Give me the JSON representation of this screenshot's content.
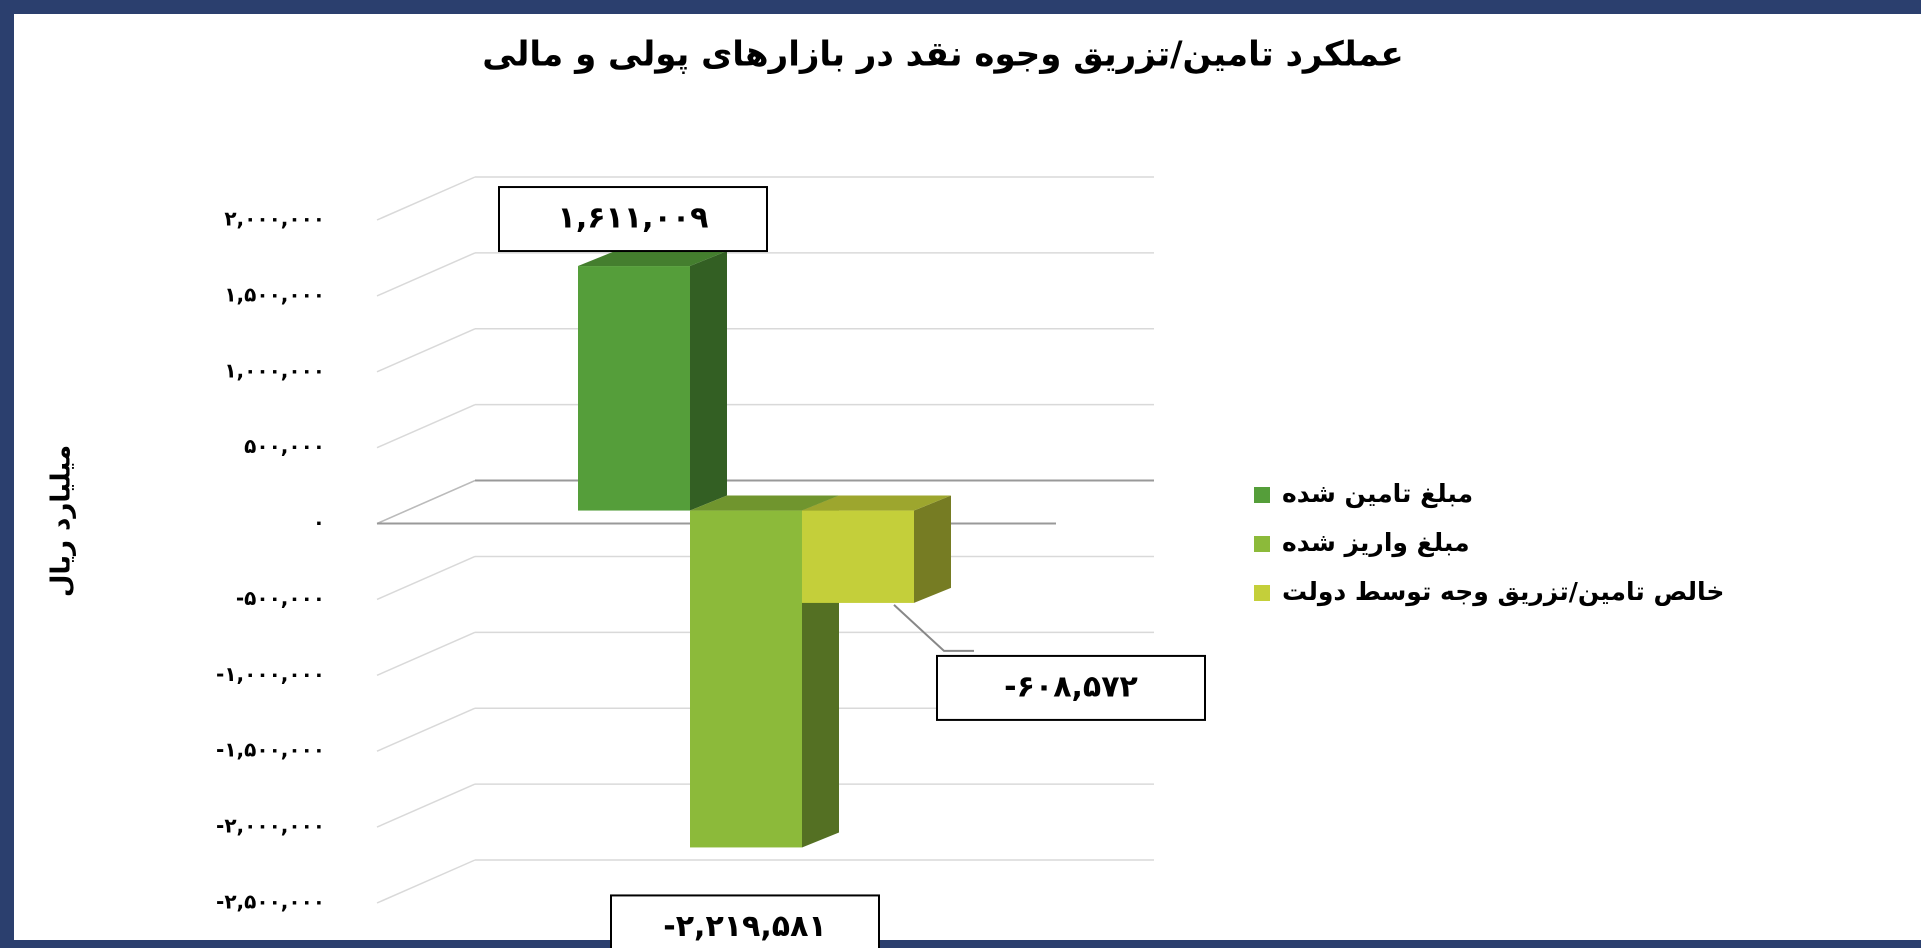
{
  "chart_data": {
    "type": "bar3d",
    "title": "عملکرد تامین/تزریق وجوه نقد در بازارهای پولی و مالی",
    "y_label": "میلیارد ریال",
    "categories": [
      null
    ],
    "series": [
      {
        "name": "مبلغ تامین شده",
        "color": "#559e3a",
        "values": [
          1611009
        ],
        "value_labels": [
          "۱,۶۱۱,۰۰۹"
        ]
      },
      {
        "name": "مبلغ واریز شده",
        "color": "#8cba3a",
        "values": [
          -2219581
        ],
        "value_labels": [
          "-۲,۲۱۹,۵۸۱"
        ]
      },
      {
        "name": "خالص تامین/تزریق وجه توسط دولت",
        "color": "#c4cf3a",
        "values": [
          -608572
        ],
        "value_labels": [
          "-۶۰۸,۵۷۲"
        ]
      }
    ],
    "ylim": [
      -2500000,
      2000000
    ],
    "yticks": [
      {
        "value": 2000000,
        "label": "۲,۰۰۰,۰۰۰"
      },
      {
        "value": 1500000,
        "label": "۱,۵۰۰,۰۰۰"
      },
      {
        "value": 1000000,
        "label": "۱,۰۰۰,۰۰۰"
      },
      {
        "value": 500000,
        "label": "۵۰۰,۰۰۰"
      },
      {
        "value": 0,
        "label": "۰"
      },
      {
        "value": -500000,
        "label": "-۵۰۰,۰۰۰"
      },
      {
        "value": -1000000,
        "label": "-۱,۰۰۰,۰۰۰"
      },
      {
        "value": -1500000,
        "label": "-۱,۵۰۰,۰۰۰"
      },
      {
        "value": -2000000,
        "label": "-۲,۰۰۰,۰۰۰"
      },
      {
        "value": -2500000,
        "label": "-۲,۵۰۰,۰۰۰"
      }
    ],
    "grid": true,
    "legend": "right"
  }
}
